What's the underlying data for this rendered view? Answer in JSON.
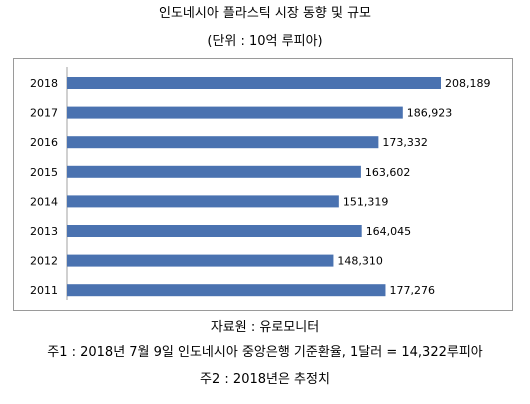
{
  "chart_data": {
    "type": "bar",
    "orientation": "horizontal",
    "title": "인도네시아 플라스틱 시장 동향 및 규모",
    "subtitle": "(단위 : 10억 루피아)",
    "categories": [
      "2018",
      "2017",
      "2016",
      "2015",
      "2014",
      "2013",
      "2012",
      "2011"
    ],
    "values": [
      208189,
      186923,
      173332,
      163602,
      151319,
      164045,
      148310,
      177276
    ],
    "value_labels": [
      "208,189",
      "186,923",
      "173,332",
      "163,602",
      "151,319",
      "164,045",
      "148,310",
      "177,276"
    ],
    "bar_color": "#4a72b0",
    "xlim": [
      0,
      208189
    ],
    "grid": false,
    "legend": "none"
  },
  "notes": {
    "source": "자료원 : 유로모니터",
    "note1": "주1 : 2018년 7월 9일 인도네시아 중앙은행 기준환율, 1달러 = 14,322루피아",
    "note2": "주2 : 2018년은 추정치"
  }
}
